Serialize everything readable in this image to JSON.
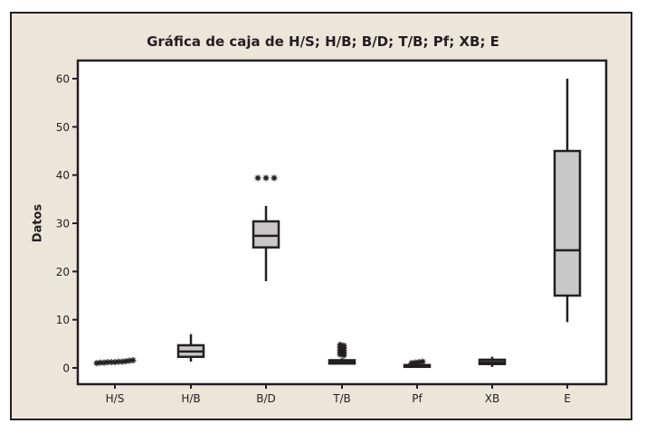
{
  "chart_data": {
    "type": "box",
    "title": "Gráfica de caja de H/S; H/B; B/D; T/B; Pf; XB; E",
    "xlabel": "",
    "ylabel": "Datos",
    "ylim": [
      -3.3,
      63.7
    ],
    "yticks": [
      0,
      10,
      20,
      30,
      40,
      50,
      60
    ],
    "grid": false,
    "legend": null,
    "categories": [
      "H/S",
      "H/B",
      "B/D",
      "T/B",
      "Pf",
      "XB",
      "E"
    ],
    "series": [
      {
        "name": "H/S",
        "whisker_low": 1.1,
        "q1": 1.1,
        "median": 1.1,
        "q3": 1.1,
        "whisker_high": 1.1,
        "outliers": [
          0.9,
          1.0,
          1.0,
          1.1,
          1.1,
          1.1,
          1.2,
          1.2,
          1.3,
          1.4,
          1.5
        ],
        "box_drawn": false
      },
      {
        "name": "H/B",
        "whisker_low": 1.3,
        "q1": 2.3,
        "median": 3.4,
        "q3": 4.7,
        "whisker_high": 7.0,
        "outliers": []
      },
      {
        "name": "B/D",
        "whisker_low": 18.0,
        "q1": 25.0,
        "median": 27.4,
        "q3": 30.4,
        "whisker_high": 33.6,
        "outliers": [
          39.4,
          39.4,
          39.4
        ]
      },
      {
        "name": "T/B",
        "whisker_low": 0.8,
        "q1": 0.9,
        "median": 1.2,
        "q3": 1.6,
        "whisker_high": 2.0,
        "outliers": [
          2.8,
          3.3,
          3.8,
          4.3,
          4.8
        ]
      },
      {
        "name": "Pf",
        "whisker_low": 0.4,
        "q1": 0.5,
        "median": 0.5,
        "q3": 0.6,
        "whisker_high": 0.7,
        "outliers": [
          1.0,
          1.1,
          1.2,
          1.3
        ]
      },
      {
        "name": "XB",
        "whisker_low": 0.2,
        "q1": 0.8,
        "median": 1.2,
        "q3": 1.7,
        "whisker_high": 2.3,
        "outliers": []
      },
      {
        "name": "E",
        "whisker_low": 9.5,
        "q1": 15.0,
        "median": 24.4,
        "q3": 45.0,
        "whisker_high": 60.0,
        "outliers": []
      }
    ]
  },
  "colors": {
    "frame_bg": "#ECE6DA",
    "plot_bg": "#FFFFFF",
    "box_fill": "#C8C8C8",
    "ink": "#231F20"
  }
}
